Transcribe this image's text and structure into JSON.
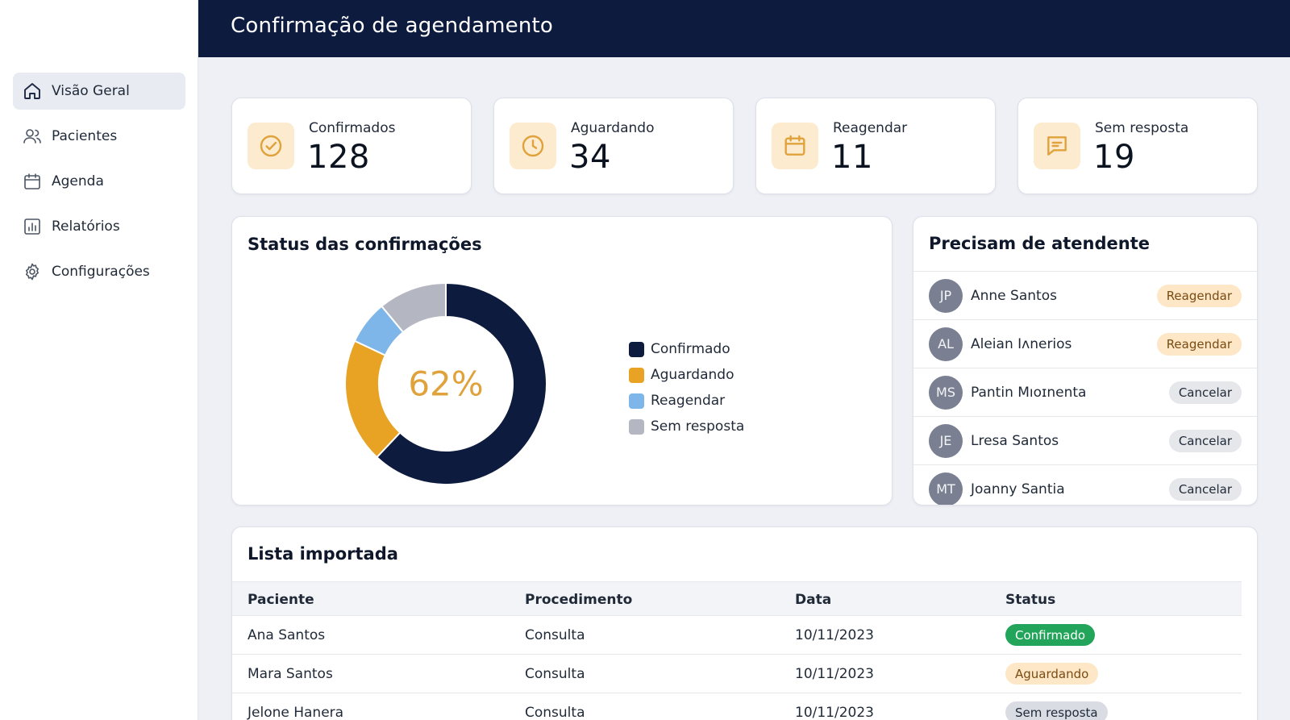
{
  "header": {
    "title": "Confirmação de agendamento"
  },
  "sidebar": {
    "items": [
      {
        "label": "Visão Geral",
        "icon": "home-icon",
        "active": true
      },
      {
        "label": "Pacientes",
        "icon": "users-icon",
        "active": false
      },
      {
        "label": "Agenda",
        "icon": "calendar-icon",
        "active": false
      },
      {
        "label": "Relatórios",
        "icon": "bar-chart-icon",
        "active": false
      },
      {
        "label": "Configurações",
        "icon": "gear-icon",
        "active": false
      }
    ]
  },
  "stats": [
    {
      "label": "Confirmados",
      "value": "128",
      "icon": "check-circle-icon"
    },
    {
      "label": "Aguardando",
      "value": "34",
      "icon": "clock-icon"
    },
    {
      "label": "Reagendar",
      "value": "11",
      "icon": "calendar-icon"
    },
    {
      "label": "Sem resposta",
      "value": "19",
      "icon": "message-icon"
    }
  ],
  "status_panel": {
    "title": "Status das confirmações",
    "center_label": "62%"
  },
  "chart_data": {
    "type": "pie",
    "categories": [
      "Confirmado",
      "Aguardando",
      "Reagendar",
      "Sem resposta"
    ],
    "values": [
      62,
      20,
      7,
      11
    ],
    "colors": [
      "#0d1b3e",
      "#e8a325",
      "#7fb6ea",
      "#b4b7c2"
    ],
    "legend": "right"
  },
  "attendant_panel": {
    "title": "Precisam de atendente",
    "items": [
      {
        "initials": "JP",
        "name": "Anne Santos",
        "action": "Reagendar"
      },
      {
        "initials": "AL",
        "name": "Aleian Iʌnerios",
        "action": "Reagendar"
      },
      {
        "initials": "MS",
        "name": "Pantin Mıoɪnenta",
        "action": "Cancelar"
      },
      {
        "initials": "JE",
        "name": "Lresa Santos",
        "action": "Cancelar"
      },
      {
        "initials": "MT",
        "name": "Joanny Santia",
        "action": "Cancelar"
      }
    ]
  },
  "table": {
    "title": "Lista importada",
    "columns": [
      "Paciente",
      "Procedimento",
      "Data",
      "Status"
    ],
    "rows": [
      {
        "patient": "Ana Santos",
        "procedure": "Consulta",
        "date": "10/11/2023",
        "status": "Confirmado"
      },
      {
        "patient": "Mara Santos",
        "procedure": "Consulta",
        "date": "10/11/2023",
        "status": "Aguardando"
      },
      {
        "patient": "Jelone Hanera",
        "procedure": "Consulta",
        "date": "10/11/2023",
        "status": "Sem resposta"
      }
    ]
  }
}
